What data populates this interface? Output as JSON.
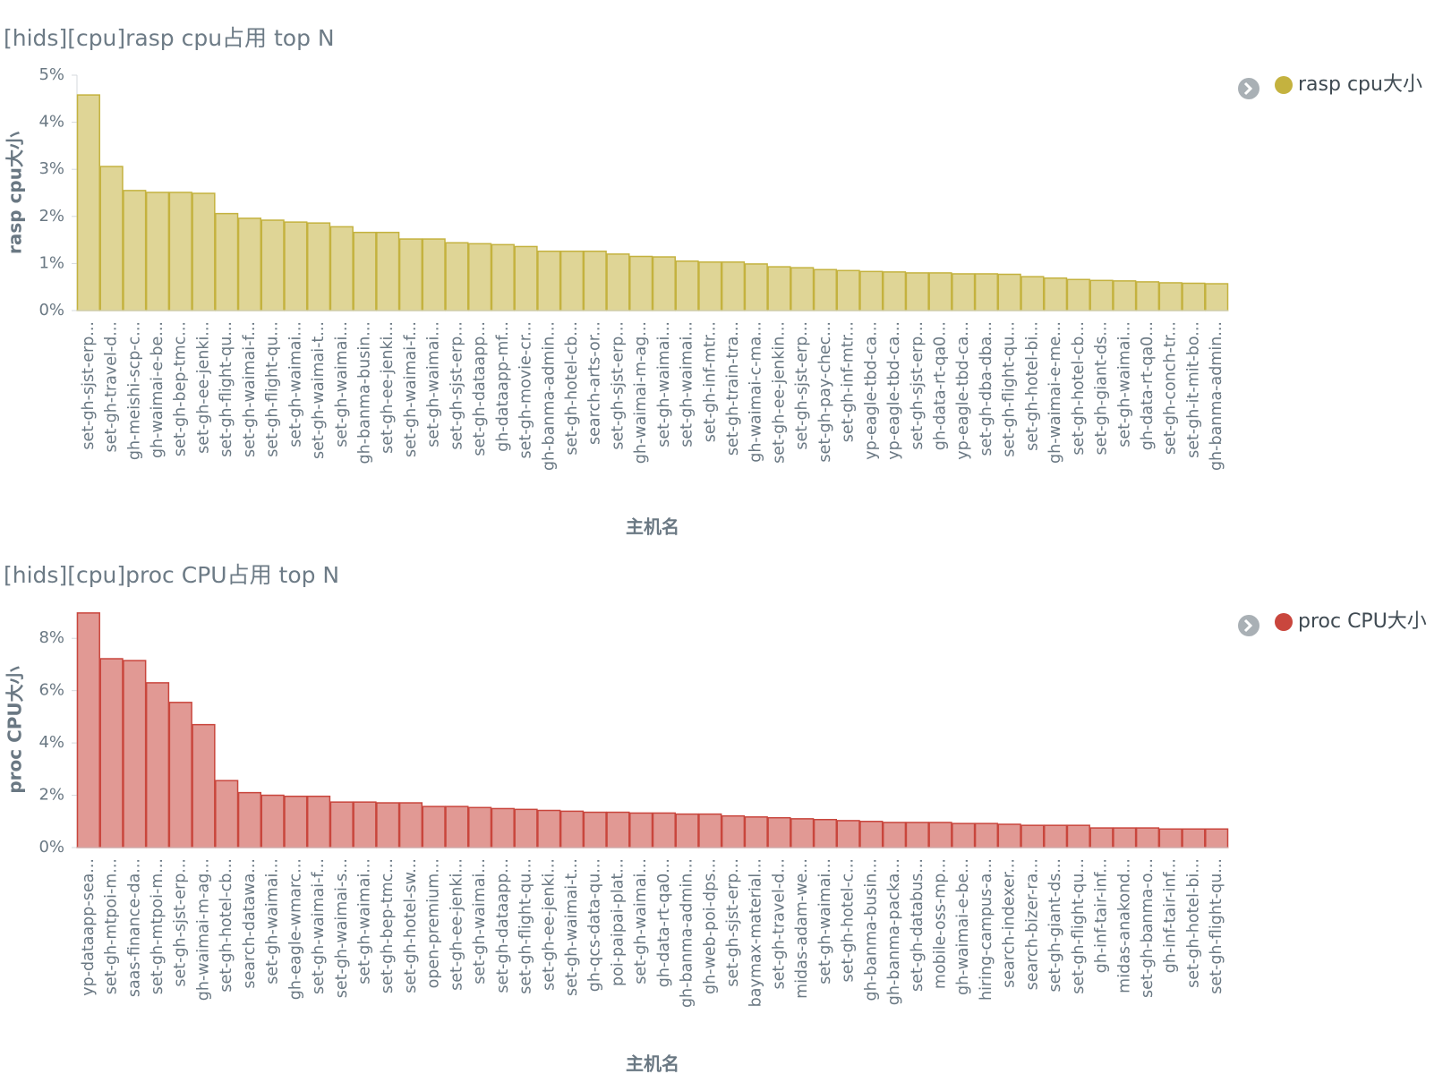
{
  "chart_data": [
    {
      "type": "bar",
      "title": "[hids][cpu]rasp cpu占用 top N",
      "y_label": "rasp cpu大小",
      "x_label": "主机名",
      "categories": [
        "set-gh-sjst-erp...",
        "set-gh-travel-d...",
        "gh-meishi-scp-c...",
        "gh-waimai-e-be...",
        "set-gh-bep-tmc...",
        "set-gh-ee-jenki...",
        "set-gh-flight-qu...",
        "set-gh-waimai-f...",
        "set-gh-flight-qu...",
        "set-gh-waimai...",
        "set-gh-waimai-t...",
        "set-gh-waimai...",
        "gh-banma-busin...",
        "set-gh-ee-jenki...",
        "set-gh-waimai-f...",
        "set-gh-waimai...",
        "set-gh-sjst-erp...",
        "set-gh-dataapp...",
        "gh-dataapp-mf...",
        "set-gh-movie-cr...",
        "gh-banma-admin...",
        "set-gh-hotel-cb...",
        "search-arts-or...",
        "set-gh-sjst-erp...",
        "gh-waimai-m-ag...",
        "set-gh-waimai...",
        "set-gh-waimai...",
        "set-gh-inf-mtr...",
        "set-gh-train-tra...",
        "gh-waimai-c-ma...",
        "set-gh-ee-jenkin...",
        "set-gh-sjst-erp...",
        "set-gh-pay-chec...",
        "set-gh-inf-mtr...",
        "yp-eagle-tbd-ca...",
        "yp-eagle-tbd-ca...",
        "set-gh-sjst-erp...",
        "gh-data-rt-qa0...",
        "yp-eagle-tbd-ca...",
        "set-gh-dba-dba...",
        "set-gh-flight-qu...",
        "set-gh-hotel-bi...",
        "gh-waimai-e-me...",
        "set-gh-hotel-cb...",
        "set-gh-giant-ds...",
        "set-gh-waimai...",
        "gh-data-rt-qa0...",
        "set-gh-conch-tr...",
        "set-gh-it-mit-bo...",
        "gh-banma-admin..."
      ],
      "series": [
        {
          "name": "rasp cpu大小",
          "color": "#c4b23f",
          "values": [
            4.58,
            3.06,
            2.55,
            2.51,
            2.51,
            2.49,
            2.06,
            1.96,
            1.92,
            1.88,
            1.86,
            1.78,
            1.66,
            1.66,
            1.52,
            1.52,
            1.44,
            1.42,
            1.4,
            1.36,
            1.26,
            1.26,
            1.26,
            1.2,
            1.15,
            1.14,
            1.05,
            1.03,
            1.03,
            0.99,
            0.93,
            0.91,
            0.87,
            0.85,
            0.83,
            0.82,
            0.8,
            0.8,
            0.78,
            0.78,
            0.77,
            0.72,
            0.69,
            0.66,
            0.64,
            0.63,
            0.61,
            0.59,
            0.58,
            0.57
          ]
        }
      ],
      "ylim": [
        0,
        5
      ],
      "yticks": [
        {
          "value": 0,
          "label": "0%"
        },
        {
          "value": 1,
          "label": "1%"
        },
        {
          "value": 2,
          "label": "2%"
        },
        {
          "value": 3,
          "label": "3%"
        },
        {
          "value": 4,
          "label": "4%"
        },
        {
          "value": 5,
          "label": "5%"
        }
      ]
    },
    {
      "type": "bar",
      "title": "[hids][cpu]proc CPU占用 top N",
      "y_label": "proc CPU大小",
      "x_label": "主机名",
      "categories": [
        "yp-dataapp-sea...",
        "set-gh-mtpoi-m...",
        "saas-finance-da...",
        "set-gh-mtpoi-m...",
        "set-gh-sjst-erp...",
        "gh-waimai-m-ag...",
        "set-gh-hotel-cb...",
        "search-datawa...",
        "set-gh-waimai...",
        "gh-eagle-wmarc...",
        "set-gh-waimai-f...",
        "set-gh-waimai-s...",
        "set-gh-waimai...",
        "set-gh-bep-tmc...",
        "set-gh-hotel-sw...",
        "open-premium...",
        "set-gh-ee-jenki...",
        "set-gh-waimai...",
        "set-gh-dataapp...",
        "set-gh-flight-qu...",
        "set-gh-ee-jenki...",
        "set-gh-waimai-t...",
        "gh-qcs-data-qu...",
        "poi-paipai-plat...",
        "set-gh-waimai...",
        "gh-data-rt-qa0...",
        "gh-banma-admin...",
        "gh-web-poi-dps...",
        "set-gh-sjst-erp...",
        "baymax-material...",
        "set-gh-travel-d...",
        "midas-adam-we...",
        "set-gh-waimai...",
        "set-gh-hotel-c...",
        "gh-banma-busin...",
        "gh-banma-packa...",
        "set-gh-databus...",
        "mobile-oss-mp...",
        "gh-waimai-e-be...",
        "hiring-campus-a...",
        "search-indexer...",
        "search-bizer-ra...",
        "set-gh-giant-ds...",
        "set-gh-flight-qu...",
        "gh-inf-tair-inf...",
        "midas-anakond...",
        "set-gh-banma-o...",
        "gh-inf-tair-inf...",
        "set-gh-hotel-bi...",
        "set-gh-flight-qu..."
      ],
      "series": [
        {
          "name": "proc CPU大小",
          "color": "#c9463d",
          "values": [
            8.97,
            7.22,
            7.15,
            6.3,
            5.55,
            4.7,
            2.56,
            2.1,
            2.0,
            1.96,
            1.96,
            1.74,
            1.74,
            1.71,
            1.71,
            1.57,
            1.57,
            1.53,
            1.49,
            1.46,
            1.42,
            1.39,
            1.35,
            1.35,
            1.32,
            1.32,
            1.28,
            1.28,
            1.21,
            1.17,
            1.14,
            1.1,
            1.07,
            1.03,
            1.0,
            0.96,
            0.96,
            0.96,
            0.92,
            0.92,
            0.89,
            0.85,
            0.85,
            0.85,
            0.75,
            0.75,
            0.75,
            0.71,
            0.71,
            0.71
          ]
        }
      ],
      "ylim": [
        0,
        9
      ],
      "yticks": [
        {
          "value": 0,
          "label": "0%"
        },
        {
          "value": 2,
          "label": "2%"
        },
        {
          "value": 4,
          "label": "4%"
        },
        {
          "value": 6,
          "label": "6%"
        },
        {
          "value": 8,
          "label": "8%"
        }
      ]
    }
  ]
}
